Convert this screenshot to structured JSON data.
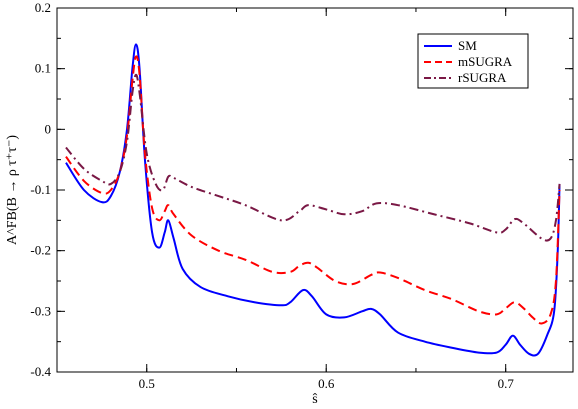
{
  "chart_data": {
    "type": "line",
    "title": "",
    "xlabel": "ŝ",
    "ylabel": "A^FB(B → ρ τ⁺τ⁻)",
    "xlim": [
      0.45,
      0.7375
    ],
    "ylim": [
      -0.4,
      0.2
    ],
    "xticks": [
      0.5,
      0.6,
      0.7
    ],
    "xtick_labels": [
      "0.5",
      "0.6",
      "0.7"
    ],
    "yticks": [
      -0.4,
      -0.3,
      -0.2,
      -0.1,
      0,
      0.1,
      0.2
    ],
    "ytick_labels": [
      "-0.4",
      "-0.3",
      "-0.2",
      "-0.1",
      "0",
      "0.1",
      "0.2"
    ],
    "grid": false,
    "legend_position": "top-right",
    "series": [
      {
        "name": "SM",
        "color": "#0000ff",
        "style": "solid",
        "points": [
          [
            0.455,
            -0.055
          ],
          [
            0.465,
            -0.1
          ],
          [
            0.475,
            -0.12
          ],
          [
            0.48,
            -0.11
          ],
          [
            0.485,
            -0.07
          ],
          [
            0.489,
            -0.0
          ],
          [
            0.492,
            0.1
          ],
          [
            0.494,
            0.14
          ],
          [
            0.496,
            0.1
          ],
          [
            0.499,
            -0.05
          ],
          [
            0.503,
            -0.17
          ],
          [
            0.507,
            -0.195
          ],
          [
            0.51,
            -0.17
          ],
          [
            0.512,
            -0.15
          ],
          [
            0.515,
            -0.18
          ],
          [
            0.52,
            -0.23
          ],
          [
            0.53,
            -0.26
          ],
          [
            0.545,
            -0.275
          ],
          [
            0.56,
            -0.285
          ],
          [
            0.575,
            -0.29
          ],
          [
            0.58,
            -0.285
          ],
          [
            0.587,
            -0.265
          ],
          [
            0.592,
            -0.275
          ],
          [
            0.6,
            -0.305
          ],
          [
            0.61,
            -0.31
          ],
          [
            0.62,
            -0.3
          ],
          [
            0.625,
            -0.296
          ],
          [
            0.63,
            -0.305
          ],
          [
            0.64,
            -0.335
          ],
          [
            0.655,
            -0.35
          ],
          [
            0.67,
            -0.36
          ],
          [
            0.685,
            -0.368
          ],
          [
            0.695,
            -0.368
          ],
          [
            0.7,
            -0.355
          ],
          [
            0.704,
            -0.34
          ],
          [
            0.708,
            -0.355
          ],
          [
            0.713,
            -0.37
          ],
          [
            0.718,
            -0.37
          ],
          [
            0.723,
            -0.34
          ],
          [
            0.727,
            -0.3
          ],
          [
            0.729,
            -0.2
          ],
          [
            0.73,
            -0.09
          ]
        ]
      },
      {
        "name": "mSUGRA",
        "color": "#ff0000",
        "style": "dashed",
        "points": [
          [
            0.455,
            -0.045
          ],
          [
            0.465,
            -0.085
          ],
          [
            0.475,
            -0.105
          ],
          [
            0.48,
            -0.1
          ],
          [
            0.485,
            -0.07
          ],
          [
            0.489,
            -0.01
          ],
          [
            0.492,
            0.08
          ],
          [
            0.494,
            0.12
          ],
          [
            0.496,
            0.09
          ],
          [
            0.499,
            -0.04
          ],
          [
            0.503,
            -0.13
          ],
          [
            0.507,
            -0.15
          ],
          [
            0.51,
            -0.135
          ],
          [
            0.512,
            -0.125
          ],
          [
            0.515,
            -0.14
          ],
          [
            0.525,
            -0.175
          ],
          [
            0.54,
            -0.2
          ],
          [
            0.555,
            -0.215
          ],
          [
            0.57,
            -0.235
          ],
          [
            0.58,
            -0.235
          ],
          [
            0.585,
            -0.225
          ],
          [
            0.59,
            -0.22
          ],
          [
            0.595,
            -0.228
          ],
          [
            0.605,
            -0.25
          ],
          [
            0.615,
            -0.255
          ],
          [
            0.625,
            -0.24
          ],
          [
            0.63,
            -0.236
          ],
          [
            0.64,
            -0.245
          ],
          [
            0.655,
            -0.265
          ],
          [
            0.67,
            -0.28
          ],
          [
            0.685,
            -0.3
          ],
          [
            0.695,
            -0.305
          ],
          [
            0.7,
            -0.295
          ],
          [
            0.705,
            -0.285
          ],
          [
            0.71,
            -0.295
          ],
          [
            0.715,
            -0.31
          ],
          [
            0.72,
            -0.32
          ],
          [
            0.725,
            -0.305
          ],
          [
            0.728,
            -0.25
          ],
          [
            0.73,
            -0.1
          ]
        ]
      },
      {
        "name": "rSUGRA",
        "color": "#7a1845",
        "style": "dashdot",
        "points": [
          [
            0.455,
            -0.03
          ],
          [
            0.465,
            -0.065
          ],
          [
            0.475,
            -0.085
          ],
          [
            0.48,
            -0.09
          ],
          [
            0.485,
            -0.07
          ],
          [
            0.489,
            -0.02
          ],
          [
            0.492,
            0.06
          ],
          [
            0.494,
            0.09
          ],
          [
            0.496,
            0.06
          ],
          [
            0.5,
            -0.04
          ],
          [
            0.505,
            -0.09
          ],
          [
            0.509,
            -0.1
          ],
          [
            0.512,
            -0.078
          ],
          [
            0.515,
            -0.08
          ],
          [
            0.525,
            -0.095
          ],
          [
            0.54,
            -0.11
          ],
          [
            0.555,
            -0.125
          ],
          [
            0.575,
            -0.15
          ],
          [
            0.585,
            -0.135
          ],
          [
            0.59,
            -0.125
          ],
          [
            0.6,
            -0.132
          ],
          [
            0.61,
            -0.14
          ],
          [
            0.62,
            -0.135
          ],
          [
            0.628,
            -0.122
          ],
          [
            0.64,
            -0.125
          ],
          [
            0.66,
            -0.14
          ],
          [
            0.68,
            -0.155
          ],
          [
            0.695,
            -0.17
          ],
          [
            0.7,
            -0.165
          ],
          [
            0.705,
            -0.148
          ],
          [
            0.71,
            -0.155
          ],
          [
            0.72,
            -0.18
          ],
          [
            0.725,
            -0.18
          ],
          [
            0.728,
            -0.15
          ],
          [
            0.73,
            -0.09
          ]
        ]
      }
    ]
  }
}
